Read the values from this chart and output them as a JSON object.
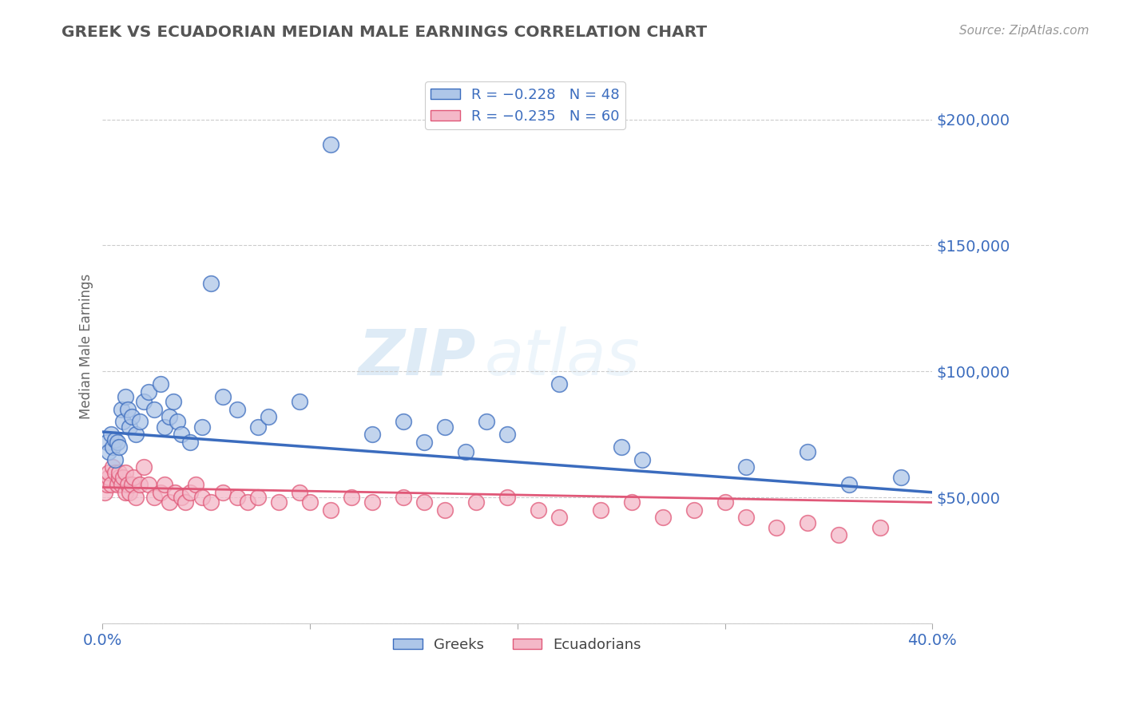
{
  "title": "GREEK VS ECUADORIAN MEDIAN MALE EARNINGS CORRELATION CHART",
  "source": "Source: ZipAtlas.com",
  "ylabel": "Median Male Earnings",
  "xlim": [
    0,
    0.4
  ],
  "ylim": [
    0,
    220000
  ],
  "yticks": [
    0,
    50000,
    100000,
    150000,
    200000
  ],
  "xticks": [
    0.0,
    0.1,
    0.2,
    0.3,
    0.4
  ],
  "greek_color": "#aec6e8",
  "greek_line_color": "#3b6cbe",
  "ecuadorian_color": "#f4b8c8",
  "ecuadorian_line_color": "#e05878",
  "legend_greek_label": "R = −0.228   N = 48",
  "legend_ecuadorian_label": "R = −0.235   N = 60",
  "legend_greek_short": "Greeks",
  "legend_ecuadorian_short": "Ecuadorians",
  "watermark_zip": "ZIP",
  "watermark_atlas": "atlas",
  "background_color": "#ffffff",
  "title_color": "#555555",
  "axis_label_color": "#3b6cbe",
  "greeks_x": [
    0.002,
    0.003,
    0.004,
    0.005,
    0.006,
    0.006,
    0.007,
    0.008,
    0.009,
    0.01,
    0.011,
    0.012,
    0.013,
    0.014,
    0.016,
    0.018,
    0.02,
    0.022,
    0.025,
    0.028,
    0.03,
    0.032,
    0.034,
    0.036,
    0.038,
    0.042,
    0.048,
    0.052,
    0.058,
    0.065,
    0.075,
    0.08,
    0.095,
    0.11,
    0.13,
    0.145,
    0.155,
    0.165,
    0.175,
    0.185,
    0.195,
    0.22,
    0.25,
    0.26,
    0.31,
    0.34,
    0.36,
    0.385
  ],
  "greeks_y": [
    72000,
    68000,
    75000,
    70000,
    65000,
    73000,
    72000,
    70000,
    85000,
    80000,
    90000,
    85000,
    78000,
    82000,
    75000,
    80000,
    88000,
    92000,
    85000,
    95000,
    78000,
    82000,
    88000,
    80000,
    75000,
    72000,
    78000,
    135000,
    90000,
    85000,
    78000,
    82000,
    88000,
    190000,
    75000,
    80000,
    72000,
    78000,
    68000,
    80000,
    75000,
    95000,
    70000,
    65000,
    62000,
    68000,
    55000,
    58000
  ],
  "ecuadorians_x": [
    0.001,
    0.002,
    0.003,
    0.003,
    0.004,
    0.005,
    0.006,
    0.007,
    0.008,
    0.008,
    0.009,
    0.01,
    0.011,
    0.011,
    0.012,
    0.013,
    0.014,
    0.015,
    0.016,
    0.018,
    0.02,
    0.022,
    0.025,
    0.028,
    0.03,
    0.032,
    0.035,
    0.038,
    0.04,
    0.042,
    0.045,
    0.048,
    0.052,
    0.058,
    0.065,
    0.07,
    0.075,
    0.085,
    0.095,
    0.1,
    0.11,
    0.12,
    0.13,
    0.145,
    0.155,
    0.165,
    0.18,
    0.195,
    0.21,
    0.22,
    0.24,
    0.255,
    0.27,
    0.285,
    0.3,
    0.31,
    0.325,
    0.34,
    0.355,
    0.375
  ],
  "ecuadorians_y": [
    52000,
    55000,
    58000,
    60000,
    55000,
    62000,
    60000,
    55000,
    58000,
    60000,
    55000,
    58000,
    52000,
    60000,
    55000,
    52000,
    55000,
    58000,
    50000,
    55000,
    62000,
    55000,
    50000,
    52000,
    55000,
    48000,
    52000,
    50000,
    48000,
    52000,
    55000,
    50000,
    48000,
    52000,
    50000,
    48000,
    50000,
    48000,
    52000,
    48000,
    45000,
    50000,
    48000,
    50000,
    48000,
    45000,
    48000,
    50000,
    45000,
    42000,
    45000,
    48000,
    42000,
    45000,
    48000,
    42000,
    38000,
    40000,
    35000,
    38000
  ]
}
